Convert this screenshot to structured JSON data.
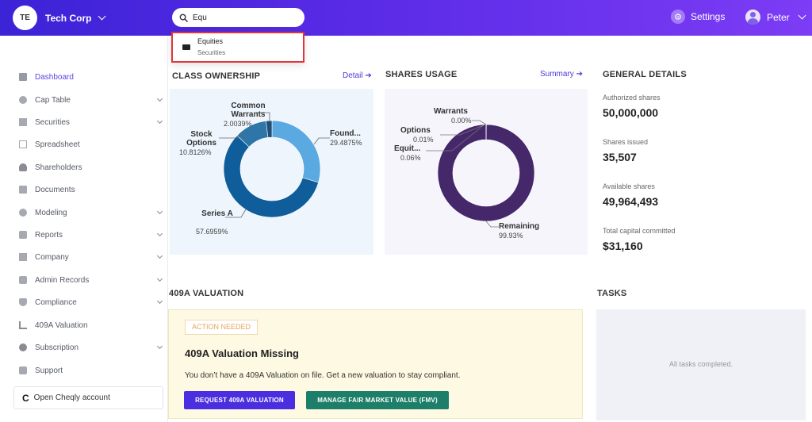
{
  "header": {
    "company_initials": "TE",
    "company_name": "Tech Corp",
    "search_value": "Equ",
    "settings_label": "Settings",
    "user_name": "Peter",
    "accent_color": "#5a2be6"
  },
  "search_results": [
    {
      "title": "Equities",
      "subtitle": "Securities",
      "icon": "folder-icon"
    }
  ],
  "sidebar": {
    "items": [
      {
        "label": "Dashboard",
        "icon": "dashboard-icon",
        "active": true,
        "has_submenu": false
      },
      {
        "label": "Cap Table",
        "icon": "pie-chart-icon",
        "has_submenu": true
      },
      {
        "label": "Securities",
        "icon": "securities-icon",
        "has_submenu": true
      },
      {
        "label": "Spreadsheet",
        "icon": "spreadsheet-icon",
        "has_submenu": false
      },
      {
        "label": "Shareholders",
        "icon": "person-icon",
        "has_submenu": false
      },
      {
        "label": "Documents",
        "icon": "document-icon",
        "has_submenu": false
      },
      {
        "label": "Modeling",
        "icon": "bulb-icon",
        "has_submenu": true
      },
      {
        "label": "Reports",
        "icon": "reports-icon",
        "has_submenu": true
      },
      {
        "label": "Company",
        "icon": "building-icon",
        "has_submenu": true
      },
      {
        "label": "Admin Records",
        "icon": "admin-icon",
        "has_submenu": true
      },
      {
        "label": "Compliance",
        "icon": "shield-icon",
        "has_submenu": true
      },
      {
        "label": "409A Valuation",
        "icon": "valuation-icon",
        "has_submenu": false
      },
      {
        "label": "Subscription",
        "icon": "subscription-icon",
        "has_submenu": true
      },
      {
        "label": "Support",
        "icon": "support-icon",
        "has_submenu": false
      }
    ],
    "cheqly_label": "Open Cheqly account"
  },
  "class_ownership": {
    "title": "CLASS OWNERSHIP",
    "link": "Detail",
    "chart_data": {
      "type": "pie",
      "donut": true,
      "categories": [
        "Founders",
        "Series A",
        "Stock Options",
        "Common Warrants"
      ],
      "values": [
        29.4875,
        57.6959,
        10.8126,
        2.0039
      ],
      "labels": [
        "Found...",
        "Series A",
        "Stock Options",
        "Common Warrants"
      ],
      "pct_labels": [
        "29.4875%",
        "57.6959%",
        "10.8126%",
        "2.0039%"
      ],
      "colors": [
        "#5aa9e0",
        "#0f5e9b",
        "#2f76a8",
        "#1d4f77"
      ]
    }
  },
  "shares_usage": {
    "title": "SHARES USAGE",
    "link": "Summary",
    "chart_data": {
      "type": "pie",
      "donut": true,
      "categories": [
        "Remaining",
        "Equities",
        "Options",
        "Warrants"
      ],
      "values": [
        99.93,
        0.06,
        0.01,
        0.0
      ],
      "labels": [
        "Remaining",
        "Equit...",
        "Options",
        "Warrants"
      ],
      "pct_labels": [
        "99.93%",
        "0.06%",
        "0.01%",
        "0.00%"
      ],
      "colors": [
        "#45286a",
        "#5b3a88",
        "#6b4a98",
        "#7b5aa8"
      ]
    }
  },
  "general_details": {
    "title": "GENERAL DETAILS",
    "items": [
      {
        "label": "Authorized shares",
        "value": "50,000,000"
      },
      {
        "label": "Shares issued",
        "value": "35,507"
      },
      {
        "label": "Available shares",
        "value": "49,964,493"
      },
      {
        "label": "Total capital committed",
        "value": "$31,160"
      }
    ]
  },
  "valuation": {
    "title": "409A VALUATION",
    "badge": "ACTION NEEDED",
    "card_title": "409A Valuation Missing",
    "text": "You don’t have a 409A Valuation on file. Get a new valuation to stay compliant.",
    "request_button": "REQUEST 409A VALUATION",
    "fmv_button": "MANAGE FAIR MARKET VALUE (FMV)"
  },
  "tasks": {
    "title": "TASKS",
    "empty_text": "All tasks completed."
  }
}
